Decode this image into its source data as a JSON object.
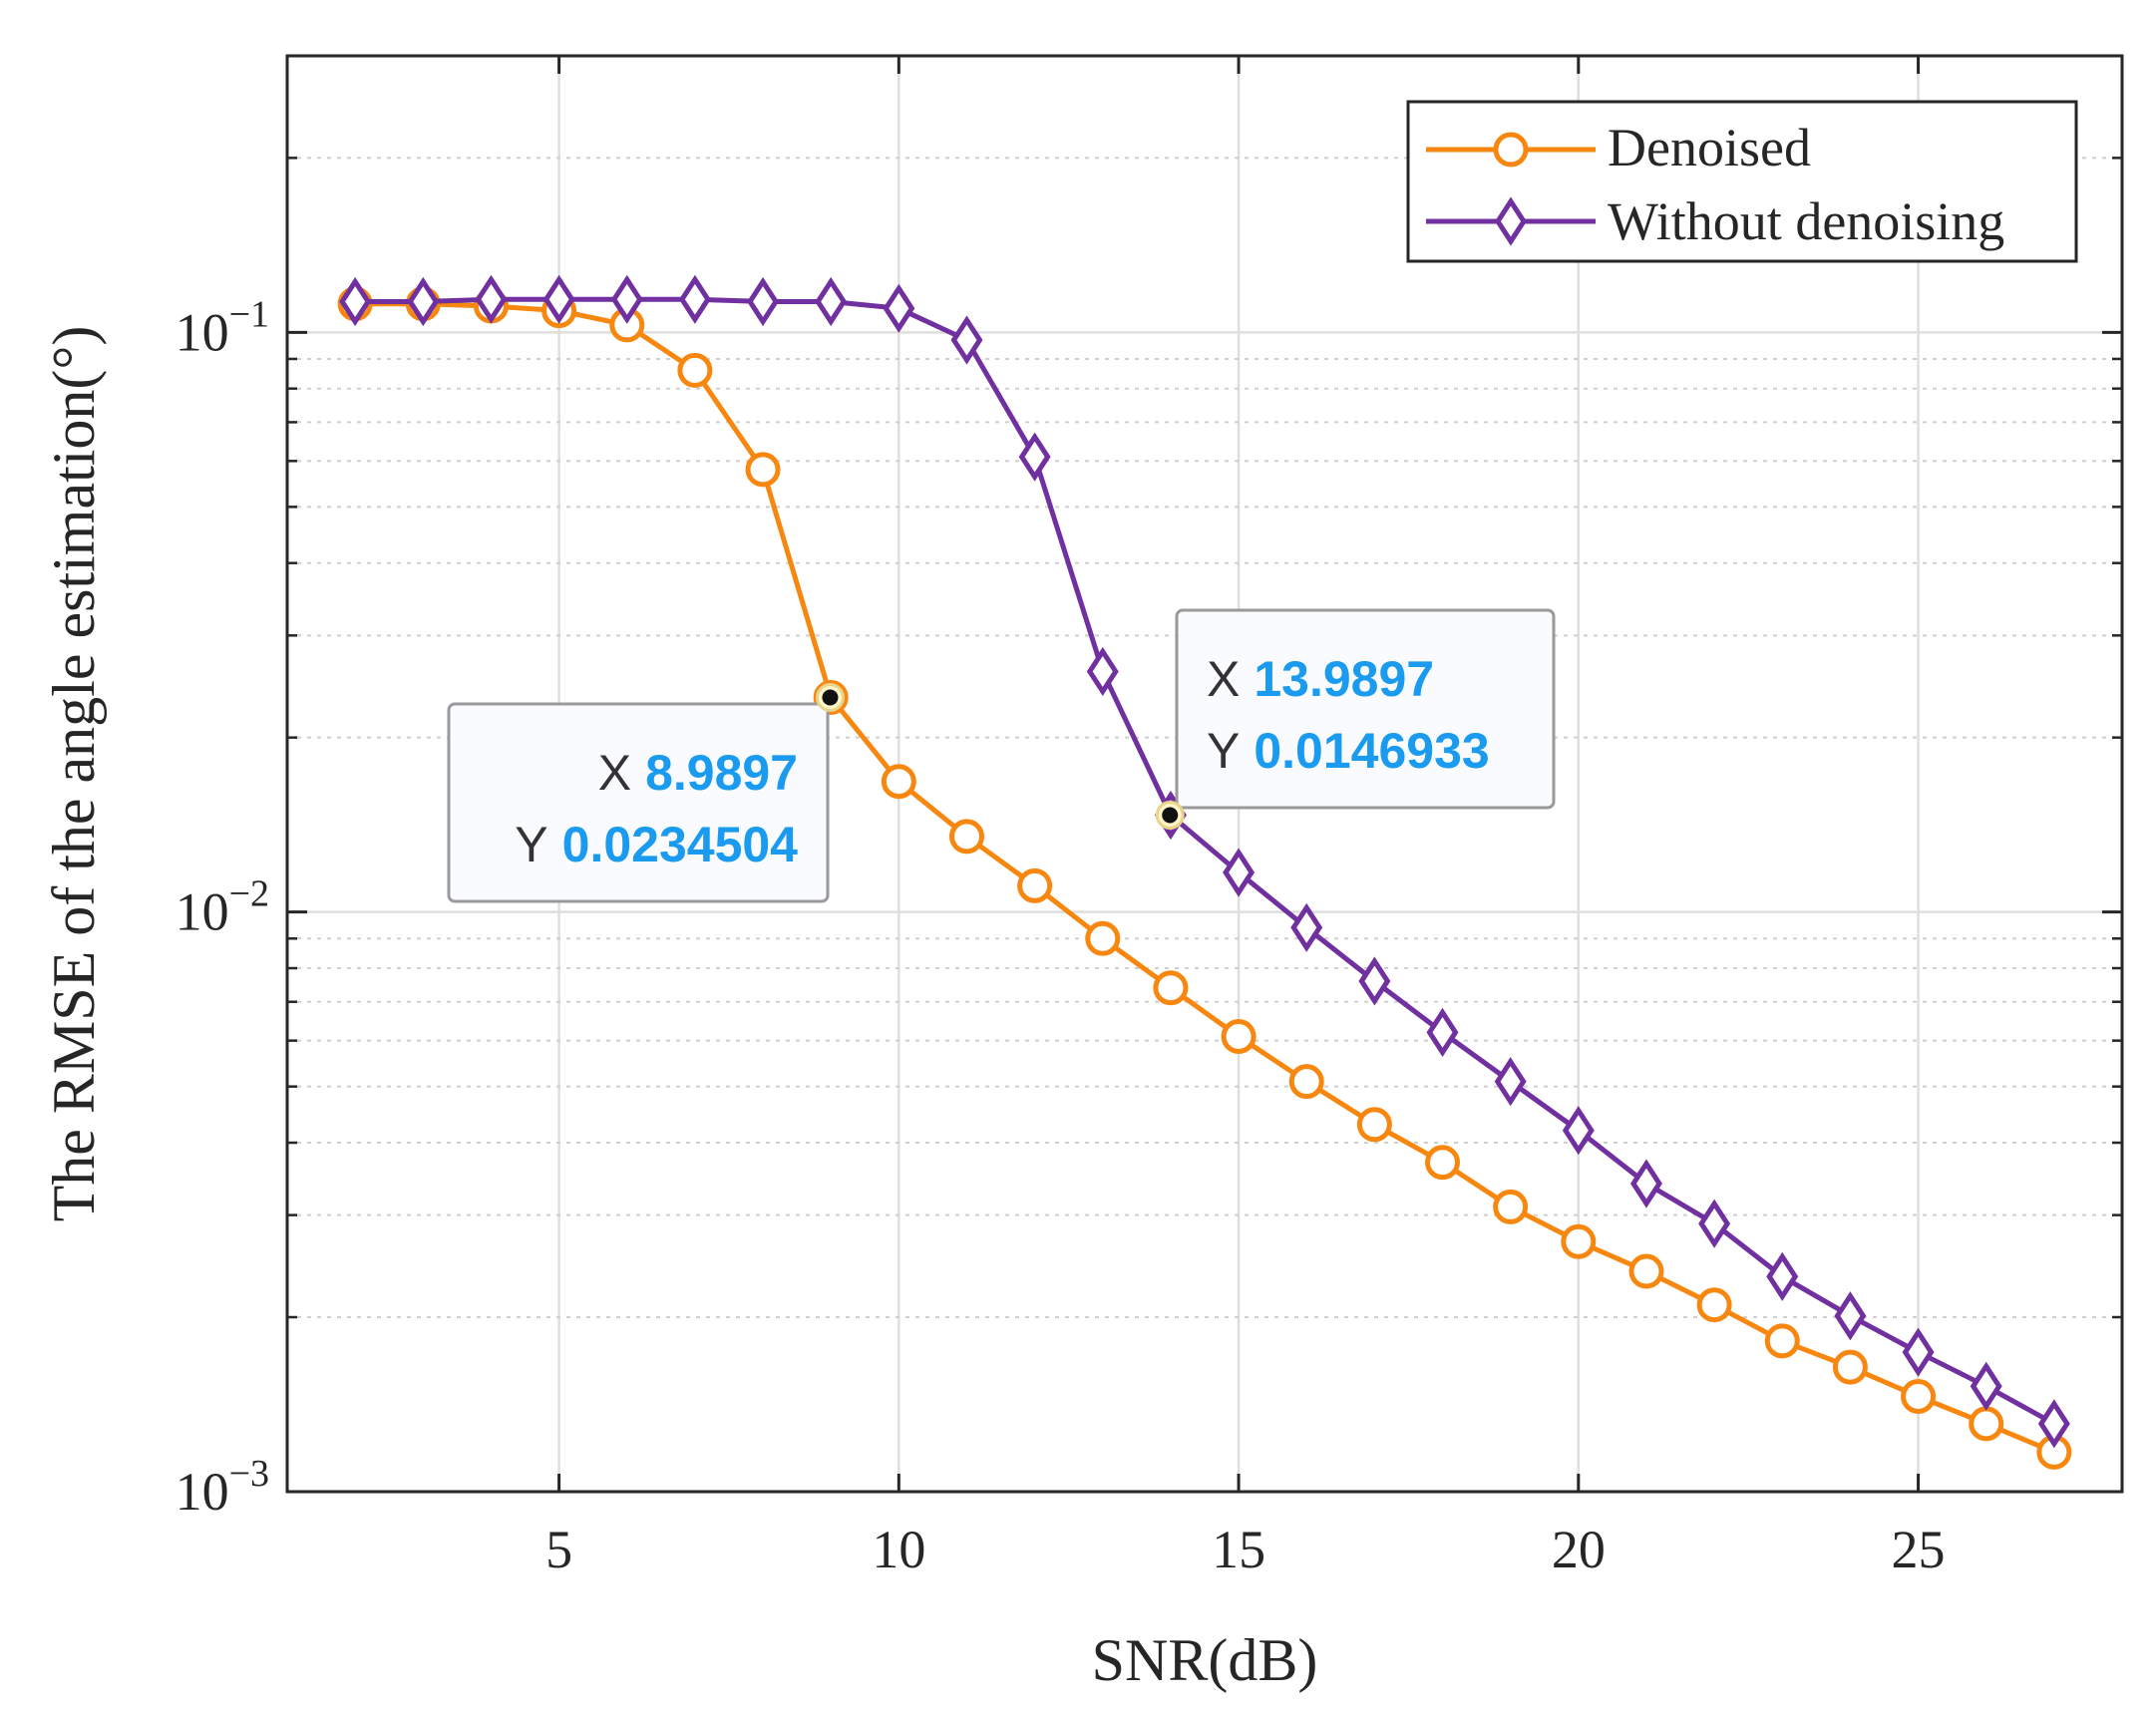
{
  "chart_data": {
    "type": "line",
    "xlabel": "SNR(dB)",
    "ylabel": "The RMSE of the angle estimation(°)",
    "xlim": [
      1,
      28
    ],
    "ylim": [
      0.001,
      0.3
    ],
    "yscale": "log",
    "grid": true,
    "x_ticks": [
      5,
      10,
      15,
      20,
      25
    ],
    "x_tick_labels": [
      "5",
      "10",
      "15",
      "20",
      "25"
    ],
    "y_ticks": [
      {
        "value": 0.1,
        "base": "10",
        "exp": "−1"
      },
      {
        "value": 0.01,
        "base": "10",
        "exp": "−2"
      },
      {
        "value": 0.001,
        "base": "10",
        "exp": "−3"
      }
    ],
    "legend_position": "top-right",
    "series": [
      {
        "name": "Denoised",
        "color": "#f7870f",
        "marker": "circle",
        "x": [
          2,
          3,
          4,
          5,
          6,
          7,
          8,
          9,
          10,
          11,
          12,
          13,
          14,
          15,
          16,
          17,
          18,
          19,
          20,
          21,
          22,
          23,
          24,
          25,
          26,
          27
        ],
        "values": [
          0.112,
          0.112,
          0.111,
          0.109,
          0.103,
          0.086,
          0.058,
          0.0234504,
          0.0168,
          0.0135,
          0.0111,
          0.009,
          0.0074,
          0.0061,
          0.0051,
          0.0043,
          0.0037,
          0.0031,
          0.0027,
          0.0024,
          0.0021,
          0.00182,
          0.00164,
          0.00146,
          0.00131,
          0.00117
        ]
      },
      {
        "name": "Without denoising",
        "color": "#7030a0",
        "marker": "diamond",
        "x": [
          2,
          3,
          4,
          5,
          6,
          7,
          8,
          9,
          10,
          11,
          12,
          13,
          14,
          15,
          16,
          17,
          18,
          19,
          20,
          21,
          22,
          23,
          24,
          25,
          26,
          27
        ],
        "values": [
          0.113,
          0.113,
          0.114,
          0.114,
          0.114,
          0.114,
          0.113,
          0.113,
          0.11,
          0.097,
          0.061,
          0.026,
          0.0146933,
          0.0117,
          0.0094,
          0.0076,
          0.0062,
          0.0051,
          0.0042,
          0.0034,
          0.0029,
          0.00235,
          0.00201,
          0.00174,
          0.00152,
          0.00131
        ]
      }
    ],
    "annotations": [
      {
        "series": 0,
        "x_label": "X",
        "x_value": "8.9897",
        "y_label": "Y",
        "y_value": "0.0234504",
        "x": 8.9897,
        "y": 0.0234504
      },
      {
        "series": 1,
        "x_label": "X",
        "x_value": "13.9897",
        "y_label": "Y",
        "y_value": "0.0146933",
        "x": 13.9897,
        "y": 0.0146933
      }
    ]
  }
}
